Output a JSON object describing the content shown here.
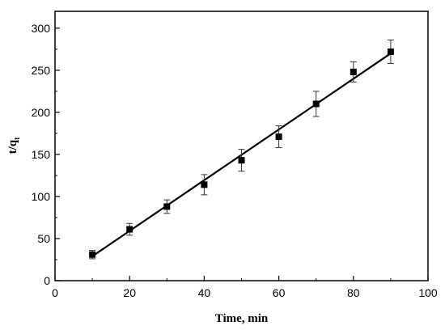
{
  "chart_data": {
    "type": "scatter",
    "title": "",
    "xlabel": "Time, min",
    "ylabel": {
      "main": "t/q",
      "sub": "t"
    },
    "xlim": [
      0,
      100
    ],
    "ylim": [
      0,
      320
    ],
    "x_ticks": [
      0,
      20,
      40,
      60,
      80,
      100
    ],
    "y_ticks": [
      0,
      50,
      100,
      150,
      200,
      250,
      300
    ],
    "grid": false,
    "legend": "none",
    "series": [
      {
        "x": [
          10,
          20,
          30,
          40,
          50,
          60,
          70,
          80,
          90
        ],
        "y": [
          31,
          61,
          88,
          114,
          143,
          171,
          210,
          248,
          272
        ],
        "error": [
          5,
          7,
          8,
          12,
          13,
          13,
          15,
          12,
          14
        ],
        "marker": "square",
        "color": "#000000"
      }
    ],
    "fit_line": {
      "x": [
        10,
        90
      ],
      "y": [
        29,
        270
      ],
      "color": "#000000"
    }
  }
}
